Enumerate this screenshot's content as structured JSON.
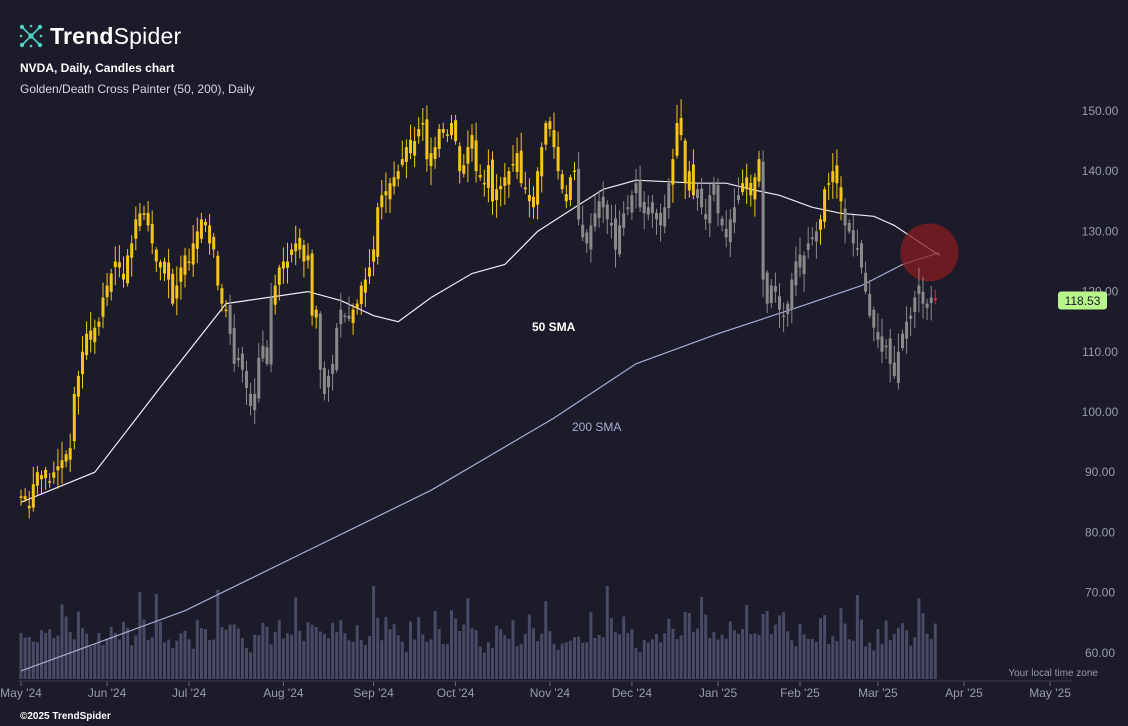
{
  "brand": {
    "bold": "Trend",
    "light": "Spider"
  },
  "header": {
    "symbol_line": "NVDA, Daily, Candles chart",
    "indicator_line": "Golden/Death Cross Painter (50, 200), Daily"
  },
  "footer": {
    "copyright": "©2025 TrendSpider"
  },
  "colors": {
    "background": "#1b1b29",
    "candle_golden": "#f5c518",
    "candle_death": "#8a8a8a",
    "candle_last": "#e0242a",
    "sma50": "#ececf2",
    "sma200": "#a9acd0",
    "volume": "#4a4a66",
    "price_tag": "#b8f58a",
    "cross_marker": "#8a1c22"
  },
  "chart_data": {
    "type": "candlestick",
    "symbol": "NVDA",
    "interval": "Daily",
    "y_axis": {
      "min": 56,
      "max": 154,
      "ticks": [
        150,
        140,
        130,
        120,
        110,
        100,
        90,
        80,
        70,
        60
      ],
      "tick_labels": [
        "150.00",
        "140.00",
        "130.00",
        "120.00",
        "110.00",
        "100.00",
        "90.00",
        "80.00",
        "70.00",
        "60.00"
      ],
      "side": "right"
    },
    "x_axis": {
      "ticks": [
        "May '24",
        "Jun '24",
        "Jul '24",
        "Aug '24",
        "Sep '24",
        "Oct '24",
        "Nov '24",
        "Dec '24",
        "Jan '25",
        "Feb '25",
        "Mar '25",
        "Apr '25",
        "May '25"
      ],
      "tick_index": [
        0,
        21,
        41,
        64,
        86,
        106,
        129,
        149,
        170,
        190,
        209,
        230,
        251
      ],
      "note": "Your local time zone"
    },
    "last_price": 118.53,
    "last_price_label": "118.53",
    "segments": [
      {
        "start": 0,
        "state": "golden",
        "prices": [
          86,
          85.5,
          84,
          88,
          90,
          89.5,
          89,
          88.5,
          90,
          91,
          92,
          93,
          94,
          103,
          106,
          110,
          113,
          112,
          114,
          115,
          119,
          121,
          123,
          125,
          124,
          122,
          126,
          128,
          132,
          133,
          133,
          131,
          128,
          125,
          124,
          125,
          122,
          118,
          121,
          124,
          126,
          125,
          128,
          130,
          132,
          131,
          128,
          127,
          121,
          118,
          117
        ]
      },
      {
        "start": 51,
        "state": "death",
        "prices": [
          113,
          108,
          109,
          107,
          104,
          101,
          103,
          109,
          111,
          108,
          119
        ]
      },
      {
        "start": 62,
        "state": "golden",
        "prices": [
          121,
          124,
          125,
          125,
          127,
          128,
          127,
          125,
          126,
          116,
          117
        ]
      },
      {
        "start": 73,
        "state": "death",
        "prices": [
          107,
          103,
          106,
          108,
          114,
          117,
          116,
          116
        ]
      },
      {
        "start": 81,
        "state": "golden",
        "prices": [
          117,
          118,
          121,
          122,
          124,
          127,
          134,
          136,
          136,
          138,
          139,
          140,
          142,
          144,
          143,
          145,
          147,
          148,
          142,
          143,
          144,
          147,
          147,
          146,
          148,
          145,
          140,
          141,
          144,
          146,
          140,
          139,
          138,
          141,
          135,
          137,
          137,
          139,
          140,
          141,
          143,
          138,
          137,
          135,
          134,
          140,
          144,
          148,
          147,
          144,
          140,
          137,
          135,
          139,
          140
        ]
      },
      {
        "start": 136,
        "state": "death",
        "prices": [
          132,
          129,
          128,
          131,
          133,
          135,
          134,
          132,
          131,
          127,
          131,
          133,
          134,
          136,
          138,
          134,
          133,
          134,
          133,
          132,
          131,
          134,
          138
        ]
      },
      {
        "start": 159,
        "state": "golden",
        "prices": [
          142,
          148,
          146,
          138,
          140,
          136
        ]
      },
      {
        "start": 165,
        "state": "death",
        "prices": [
          137,
          134,
          132,
          136,
          138,
          133,
          131,
          129,
          132,
          134,
          136
        ]
      },
      {
        "start": 176,
        "state": "golden",
        "prices": [
          138,
          137,
          136,
          139,
          142
        ]
      },
      {
        "start": 181,
        "state": "death",
        "prices": [
          122,
          118,
          121,
          120,
          117,
          116,
          118,
          122,
          125,
          124,
          126,
          128,
          129,
          130
        ]
      },
      {
        "start": 195,
        "state": "golden",
        "prices": [
          132,
          137,
          138,
          140,
          138,
          135
        ]
      },
      {
        "start": 201,
        "state": "death",
        "prices": [
          131,
          130,
          128,
          127,
          124,
          120,
          116,
          114,
          112,
          110,
          111,
          108,
          106,
          110,
          113,
          115,
          116,
          119,
          121,
          118,
          118,
          119
        ]
      },
      {
        "start": 223,
        "state": "last",
        "prices": [
          118.53
        ]
      }
    ],
    "sma50": {
      "label": "50 SMA",
      "points": [
        [
          0,
          85
        ],
        [
          18,
          90
        ],
        [
          35,
          105
        ],
        [
          50,
          118
        ],
        [
          60,
          119
        ],
        [
          70,
          120
        ],
        [
          78,
          118.5
        ],
        [
          86,
          116
        ],
        [
          92,
          115
        ],
        [
          100,
          119
        ],
        [
          110,
          123
        ],
        [
          118,
          124.5
        ],
        [
          126,
          130
        ],
        [
          134,
          133.5
        ],
        [
          142,
          137
        ],
        [
          150,
          138.5
        ],
        [
          165,
          138
        ],
        [
          172,
          138
        ],
        [
          178,
          137
        ],
        [
          185,
          136
        ],
        [
          193,
          134
        ],
        [
          200,
          133
        ],
        [
          208,
          132.5
        ],
        [
          213,
          131
        ],
        [
          224,
          126
        ]
      ]
    },
    "sma200": {
      "label": "200 SMA",
      "points": [
        [
          0,
          57
        ],
        [
          40,
          67
        ],
        [
          70,
          77
        ],
        [
          100,
          87
        ],
        [
          130,
          99
        ],
        [
          150,
          108
        ],
        [
          170,
          113
        ],
        [
          190,
          117.5
        ],
        [
          205,
          121
        ],
        [
          215,
          124.5
        ],
        [
          224,
          126.5
        ]
      ]
    },
    "cross_marker_index": 224,
    "volume": {
      "heights_rel": [
        0.45,
        0.38,
        0.52,
        0.41,
        0.35,
        0.48,
        0.6,
        0.4,
        0.37,
        0.44,
        0.9,
        0.55,
        0.42,
        0.5,
        0.7,
        0.6,
        0.4,
        0.36,
        0.3
      ]
    }
  }
}
